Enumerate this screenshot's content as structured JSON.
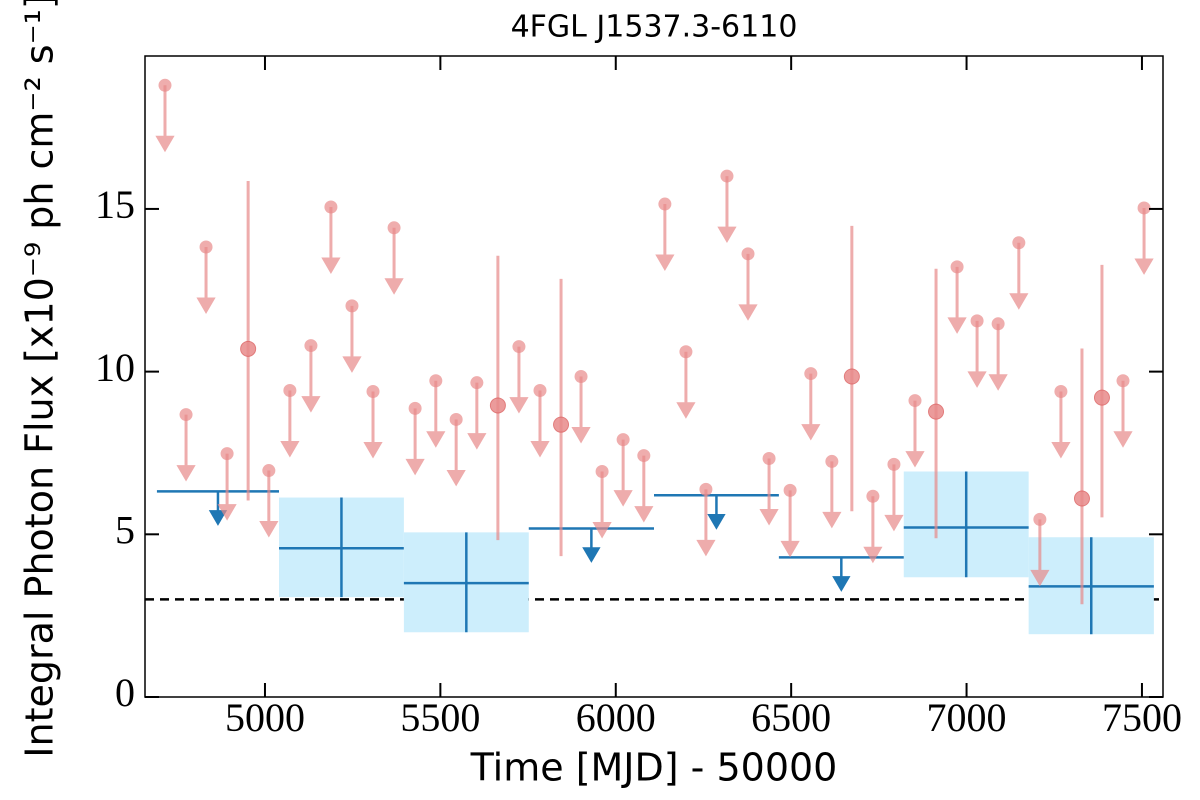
{
  "chart_data": {
    "type": "lightcurve",
    "title": "4FGL J1537.3-6110",
    "x_label": "Time [MJD] - 50000",
    "y_label": "Integral Photon Flux [x10⁻⁹ ph cm⁻² s⁻¹]",
    "xlim": [
      4658,
      7560
    ],
    "ylim": [
      0,
      19.7
    ],
    "xticks": [
      5000,
      5500,
      6000,
      6500,
      7000,
      7500
    ],
    "yticks": [
      0,
      5,
      10,
      15
    ],
    "baseline": 3.0,
    "fine": {
      "color": "#e88a8a",
      "upper_limits": {
        "x": [
          4715,
          4775,
          4832,
          4892,
          5011,
          5071,
          5131,
          5188,
          5248,
          5308,
          5368,
          5428,
          5487,
          5545,
          5604,
          5724,
          5784,
          5901,
          5961,
          6021,
          6080,
          6140,
          6200,
          6257,
          6317,
          6377,
          6437,
          6497,
          6556,
          6616,
          6733,
          6793,
          6853,
          6973,
          7030,
          7090,
          7149,
          7209,
          7269,
          7446,
          7506
        ],
        "values": [
          18.8,
          8.68,
          13.83,
          7.48,
          6.96,
          9.42,
          10.8,
          15.06,
          12.02,
          9.39,
          14.42,
          8.87,
          9.72,
          8.53,
          9.66,
          10.77,
          9.42,
          9.85,
          6.93,
          7.91,
          7.42,
          15.15,
          10.61,
          6.38,
          16.01,
          13.62,
          7.33,
          6.35,
          9.94,
          7.24,
          6.17,
          7.15,
          9.11,
          13.22,
          11.56,
          11.47,
          13.96,
          5.46,
          9.39,
          9.72,
          15.03
        ]
      },
      "detections": {
        "x": [
          4952,
          5664,
          5844,
          6673,
          6913,
          7329,
          7386
        ],
        "values": [
          10.7,
          8.96,
          8.37,
          9.85,
          8.77,
          6.1,
          9.2
        ],
        "lower": [
          6.04,
          4.82,
          4.33,
          5.71,
          4.88,
          2.85,
          5.52
        ],
        "upper": [
          15.86,
          13.56,
          12.85,
          14.48,
          13.16,
          10.71,
          13.28
        ]
      }
    },
    "coarse": {
      "color": "#1f77b4",
      "fill": "#cdeefc",
      "upper_limits": {
        "x_start": [
          4692,
          5752,
          6109,
          6465
        ],
        "x_end": [
          5040,
          6109,
          6465,
          6821
        ],
        "values": [
          6.32,
          5.18,
          6.2,
          4.29
        ]
      },
      "detections": {
        "x_start": [
          5040,
          5396,
          6821,
          7177
        ],
        "x_end": [
          5396,
          5752,
          7177,
          7534
        ],
        "values": [
          4.57,
          3.5,
          5.21,
          3.4
        ],
        "lower": [
          3.07,
          1.99,
          3.68,
          1.93
        ],
        "upper": [
          6.13,
          5.06,
          6.93,
          4.91
        ]
      }
    }
  }
}
